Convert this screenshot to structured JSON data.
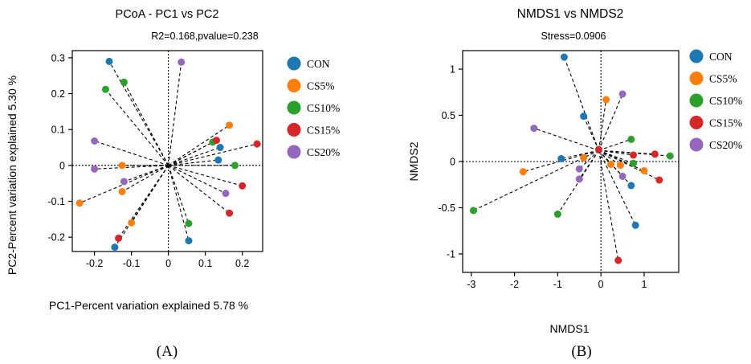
{
  "chart_data": [
    {
      "type": "scatter",
      "panel_label": "(A)",
      "title": "PCoA - PC1 vs PC2",
      "subtitle": "R2=0.168,pvalue=0.238",
      "xlabel": "PC1-Percent variation explained 5.78 %",
      "ylabel": "PC2-Percent variation explained 5.30 %",
      "xlim": [
        -0.26,
        0.255
      ],
      "ylim": [
        -0.24,
        0.32
      ],
      "xticks": [
        -0.2,
        -0.1,
        0,
        0.1,
        0.2
      ],
      "xtick_labels": [
        "-0.2",
        "-0.1",
        "0",
        "0.1",
        "0.2"
      ],
      "yticks": [
        -0.2,
        -0.1,
        0,
        0.1,
        0.2,
        0.3
      ],
      "ytick_labels": [
        "-0.2",
        "-0.1",
        "0",
        "0.1",
        "0.2",
        "0.3"
      ],
      "centroid": [
        0,
        0
      ],
      "legend": [
        {
          "name": "CON",
          "color": "#1f77b4"
        },
        {
          "name": "CS5%",
          "color": "#ff7f0e"
        },
        {
          "name": "CS10%",
          "color": "#2ca02c"
        },
        {
          "name": "CS15%",
          "color": "#d62728"
        },
        {
          "name": "CS20%",
          "color": "#9467bd"
        }
      ],
      "series": [
        {
          "name": "CON",
          "color": "#1f77b4",
          "points": [
            [
              -0.16,
              0.29
            ],
            [
              0.14,
              0.05
            ],
            [
              0.135,
              0.015
            ],
            [
              0.055,
              -0.21
            ],
            [
              -0.145,
              -0.228
            ]
          ]
        },
        {
          "name": "CS5%",
          "color": "#ff7f0e",
          "points": [
            [
              0.165,
              0.112
            ],
            [
              -0.125,
              0.0
            ],
            [
              -0.125,
              -0.073
            ],
            [
              -0.1,
              -0.16
            ],
            [
              -0.24,
              -0.105
            ]
          ]
        },
        {
          "name": "CS10%",
          "color": "#2ca02c",
          "points": [
            [
              -0.17,
              0.212
            ],
            [
              -0.12,
              0.232
            ],
            [
              0.12,
              0.065
            ],
            [
              0.18,
              0.0
            ],
            [
              0.055,
              -0.162
            ]
          ]
        },
        {
          "name": "CS15%",
          "color": "#d62728",
          "points": [
            [
              0.13,
              0.07
            ],
            [
              0.24,
              0.06
            ],
            [
              0.2,
              -0.057
            ],
            [
              0.165,
              -0.133
            ],
            [
              -0.135,
              -0.203
            ]
          ]
        },
        {
          "name": "CS20%",
          "color": "#9467bd",
          "points": [
            [
              0.035,
              0.288
            ],
            [
              -0.2,
              0.068
            ],
            [
              -0.2,
              -0.01
            ],
            [
              -0.12,
              -0.045
            ],
            [
              0.155,
              -0.078
            ]
          ]
        }
      ]
    },
    {
      "type": "scatter",
      "panel_label": "(B)",
      "title": "NMDS1 vs NMDS2",
      "subtitle": "Stress=0.0906",
      "xlabel": "NMDS1",
      "ylabel": "NMDS2",
      "xlim": [
        -3.2,
        1.8
      ],
      "ylim": [
        -1.2,
        1.2
      ],
      "xticks": [
        -3,
        -2,
        -1,
        0,
        1
      ],
      "xtick_labels": [
        "-3",
        "-2",
        "-1",
        "0",
        "1"
      ],
      "yticks": [
        -1,
        -0.5,
        0,
        0.5,
        1
      ],
      "ytick_labels": [
        "-1",
        "-0.5",
        "0",
        "0.5",
        "1"
      ],
      "centroid": [
        -0.05,
        0.12
      ],
      "legend": [
        {
          "name": "CON",
          "color": "#1f77b4"
        },
        {
          "name": "CS5%",
          "color": "#ff7f0e"
        },
        {
          "name": "CS10%",
          "color": "#2ca02c"
        },
        {
          "name": "CS15%",
          "color": "#d62728"
        },
        {
          "name": "CS20%",
          "color": "#9467bd"
        }
      ],
      "series": [
        {
          "name": "CON",
          "color": "#1f77b4",
          "points": [
            [
              -0.85,
              1.13
            ],
            [
              -0.4,
              0.49
            ],
            [
              -0.92,
              0.03
            ],
            [
              0.7,
              -0.26
            ],
            [
              0.8,
              -0.69
            ]
          ]
        },
        {
          "name": "CS5%",
          "color": "#ff7f0e",
          "points": [
            [
              -1.8,
              -0.11
            ],
            [
              -0.4,
              0.04
            ],
            [
              0.23,
              -0.03
            ],
            [
              0.45,
              -0.04
            ],
            [
              1.0,
              -0.1
            ],
            [
              0.12,
              0.67
            ]
          ]
        },
        {
          "name": "CS10%",
          "color": "#2ca02c",
          "points": [
            [
              -2.95,
              -0.53
            ],
            [
              -1.0,
              -0.57
            ],
            [
              0.7,
              0.24
            ],
            [
              0.75,
              -0.02
            ],
            [
              1.6,
              0.06
            ]
          ]
        },
        {
          "name": "CS15%",
          "color": "#d62728",
          "points": [
            [
              -0.05,
              0.13
            ],
            [
              0.75,
              0.07
            ],
            [
              1.25,
              0.08
            ],
            [
              1.35,
              -0.2
            ],
            [
              0.4,
              -1.07
            ]
          ]
        },
        {
          "name": "CS20%",
          "color": "#9467bd",
          "points": [
            [
              -1.55,
              0.36
            ],
            [
              0.5,
              0.73
            ],
            [
              -0.5,
              -0.08
            ],
            [
              -0.5,
              -0.19
            ],
            [
              0.5,
              -0.16
            ]
          ]
        }
      ]
    }
  ]
}
